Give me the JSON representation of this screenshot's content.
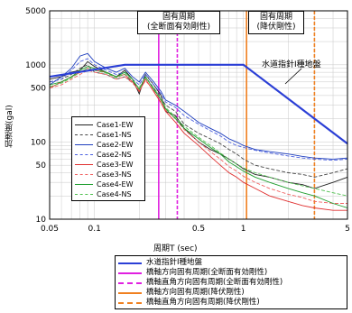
{
  "chart_data": {
    "type": "line",
    "title": "",
    "xlabel": "周期T (sec)",
    "ylabel": "加速度(gal)",
    "xscale": "log",
    "yscale": "log",
    "xlim": [
      0.05,
      5
    ],
    "ylim": [
      10,
      5000
    ],
    "grid": true,
    "x_ticks": [
      {
        "value": 0.05,
        "label": "0.05"
      },
      {
        "value": 0.1,
        "label": "0.1"
      },
      {
        "value": 0.5,
        "label": "0.5"
      },
      {
        "value": 1,
        "label": "1"
      },
      {
        "value": 5,
        "label": "5"
      }
    ],
    "y_ticks": [
      {
        "value": 5000,
        "label": "5000"
      },
      {
        "value": 1000,
        "label": "1000"
      },
      {
        "value": 500,
        "label": "500"
      },
      {
        "value": 100,
        "label": "100"
      },
      {
        "value": 50,
        "label": "50"
      },
      {
        "value": 10,
        "label": "10"
      }
    ],
    "design_curve": {
      "name": "水道指針Ⅰ種地盤",
      "color": "#2b3fd6",
      "x": [
        0.05,
        0.16,
        1.0,
        5.0
      ],
      "y": [
        700,
        1000,
        1000,
        95
      ]
    },
    "series": [
      {
        "name": "Case1-EW",
        "color": "#222222",
        "dash": "solid",
        "x": [
          0.05,
          0.06,
          0.07,
          0.08,
          0.09,
          0.1,
          0.12,
          0.14,
          0.16,
          0.18,
          0.2,
          0.22,
          0.25,
          0.28,
          0.3,
          0.35,
          0.4,
          0.5,
          0.6,
          0.7,
          0.8,
          0.9,
          1.0,
          1.2,
          1.5,
          2.0,
          2.5,
          3.0,
          4.0,
          5.0
        ],
        "y": [
          650,
          700,
          800,
          850,
          1100,
          950,
          800,
          700,
          850,
          650,
          420,
          750,
          550,
          400,
          250,
          220,
          150,
          100,
          80,
          70,
          60,
          52,
          45,
          38,
          35,
          30,
          28,
          25,
          30,
          35
        ]
      },
      {
        "name": "Case1-NS",
        "color": "#444444",
        "dash": "dashed",
        "x": [
          0.05,
          0.06,
          0.07,
          0.08,
          0.09,
          0.1,
          0.12,
          0.14,
          0.16,
          0.18,
          0.2,
          0.22,
          0.25,
          0.28,
          0.3,
          0.35,
          0.4,
          0.5,
          0.6,
          0.7,
          0.8,
          0.9,
          1.0,
          1.2,
          1.5,
          2.0,
          2.5,
          3.0,
          4.0,
          5.0
        ],
        "y": [
          600,
          650,
          750,
          900,
          1000,
          800,
          750,
          650,
          700,
          600,
          500,
          700,
          500,
          380,
          300,
          250,
          170,
          130,
          110,
          95,
          80,
          70,
          60,
          50,
          45,
          40,
          38,
          35,
          40,
          45
        ]
      },
      {
        "name": "Case2-EW",
        "color": "#1f3fbf",
        "dash": "solid",
        "x": [
          0.05,
          0.06,
          0.07,
          0.08,
          0.09,
          0.1,
          0.12,
          0.14,
          0.16,
          0.18,
          0.2,
          0.22,
          0.25,
          0.28,
          0.3,
          0.35,
          0.4,
          0.5,
          0.6,
          0.7,
          0.8,
          0.9,
          1.0,
          1.2,
          1.5,
          2.0,
          2.5,
          3.0,
          4.0,
          5.0
        ],
        "y": [
          550,
          700,
          900,
          1300,
          1400,
          1100,
          900,
          800,
          900,
          700,
          600,
          800,
          600,
          450,
          350,
          300,
          250,
          180,
          150,
          130,
          110,
          100,
          90,
          80,
          75,
          70,
          65,
          62,
          60,
          62
        ]
      },
      {
        "name": "Case2-NS",
        "color": "#4a5fe0",
        "dash": "dashed",
        "x": [
          0.05,
          0.06,
          0.07,
          0.08,
          0.09,
          0.1,
          0.12,
          0.14,
          0.16,
          0.18,
          0.2,
          0.22,
          0.25,
          0.28,
          0.3,
          0.35,
          0.4,
          0.5,
          0.6,
          0.7,
          0.8,
          0.9,
          1.0,
          1.2,
          1.5,
          2.0,
          2.5,
          3.0,
          4.0,
          5.0
        ],
        "y": [
          600,
          650,
          850,
          1100,
          1200,
          1000,
          850,
          750,
          800,
          650,
          550,
          750,
          550,
          420,
          330,
          280,
          220,
          170,
          140,
          120,
          100,
          90,
          85,
          78,
          72,
          66,
          62,
          60,
          58,
          60
        ]
      },
      {
        "name": "Case3-EW",
        "color": "#e03030",
        "dash": "solid",
        "x": [
          0.05,
          0.06,
          0.07,
          0.08,
          0.09,
          0.1,
          0.12,
          0.14,
          0.16,
          0.18,
          0.2,
          0.22,
          0.25,
          0.28,
          0.3,
          0.35,
          0.4,
          0.5,
          0.6,
          0.7,
          0.8,
          0.9,
          1.0,
          1.2,
          1.5,
          2.0,
          2.5,
          3.0,
          4.0,
          5.0
        ],
        "y": [
          500,
          600,
          700,
          800,
          900,
          850,
          800,
          700,
          750,
          600,
          450,
          650,
          450,
          320,
          250,
          180,
          130,
          90,
          65,
          50,
          40,
          35,
          30,
          25,
          20,
          17,
          15,
          14,
          13,
          13
        ]
      },
      {
        "name": "Case3-NS",
        "color": "#f06060",
        "dash": "dashed",
        "x": [
          0.05,
          0.06,
          0.07,
          0.08,
          0.09,
          0.1,
          0.12,
          0.14,
          0.16,
          0.18,
          0.2,
          0.22,
          0.25,
          0.28,
          0.3,
          0.35,
          0.4,
          0.5,
          0.6,
          0.7,
          0.8,
          0.9,
          1.0,
          1.2,
          1.5,
          2.0,
          2.5,
          3.0,
          4.0,
          5.0
        ],
        "y": [
          500,
          550,
          650,
          750,
          850,
          800,
          750,
          650,
          700,
          580,
          470,
          620,
          470,
          340,
          260,
          200,
          145,
          100,
          75,
          60,
          48,
          42,
          36,
          30,
          25,
          21,
          19,
          17,
          16,
          16
        ]
      },
      {
        "name": "Case4-EW",
        "color": "#1e9e2e",
        "dash": "solid",
        "x": [
          0.05,
          0.06,
          0.07,
          0.08,
          0.09,
          0.1,
          0.12,
          0.14,
          0.16,
          0.18,
          0.2,
          0.22,
          0.25,
          0.28,
          0.3,
          0.35,
          0.4,
          0.5,
          0.6,
          0.7,
          0.8,
          0.9,
          1.0,
          1.2,
          1.5,
          2.0,
          2.5,
          3.0,
          4.0,
          5.0
        ],
        "y": [
          550,
          600,
          700,
          850,
          950,
          900,
          800,
          700,
          800,
          650,
          480,
          700,
          480,
          350,
          270,
          200,
          150,
          110,
          85,
          70,
          55,
          48,
          42,
          35,
          30,
          25,
          22,
          20,
          16,
          14
        ]
      },
      {
        "name": "Case4-NS",
        "color": "#50c050",
        "dash": "dashed",
        "x": [
          0.05,
          0.06,
          0.07,
          0.08,
          0.09,
          0.1,
          0.12,
          0.14,
          0.16,
          0.18,
          0.2,
          0.22,
          0.25,
          0.28,
          0.3,
          0.35,
          0.4,
          0.5,
          0.6,
          0.7,
          0.8,
          0.9,
          1.0,
          1.2,
          1.5,
          2.0,
          2.5,
          3.0,
          4.0,
          5.0
        ],
        "y": [
          520,
          580,
          680,
          800,
          900,
          850,
          780,
          680,
          760,
          620,
          500,
          680,
          500,
          360,
          280,
          210,
          160,
          115,
          90,
          72,
          60,
          52,
          46,
          40,
          35,
          30,
          27,
          25,
          22,
          20
        ]
      }
    ],
    "period_lines": [
      {
        "name": "橋軸方向固有周期(全断面有効剛性)",
        "x": 0.27,
        "color": "#e020e0",
        "dash": "solid"
      },
      {
        "name": "橋軸直角方向固有周期(全断面有効剛性)",
        "x": 0.36,
        "color": "#e020e0",
        "dash": "dashed"
      },
      {
        "name": "橋軸方向固有周期(降伏剛性)",
        "x": 1.05,
        "color": "#f08020",
        "dash": "solid"
      },
      {
        "name": "橋軸直角方向固有周期(降伏剛性)",
        "x": 3.0,
        "color": "#f08020",
        "dash": "dashed"
      }
    ]
  },
  "annotations": {
    "box1_line1": "固有周期",
    "box1_line2": "(全断面有効剛性)",
    "box2_line1": "固有周期",
    "box2_line2": "(降伏剛性)",
    "curve_label": "水道指針Ⅰ種地盤"
  }
}
